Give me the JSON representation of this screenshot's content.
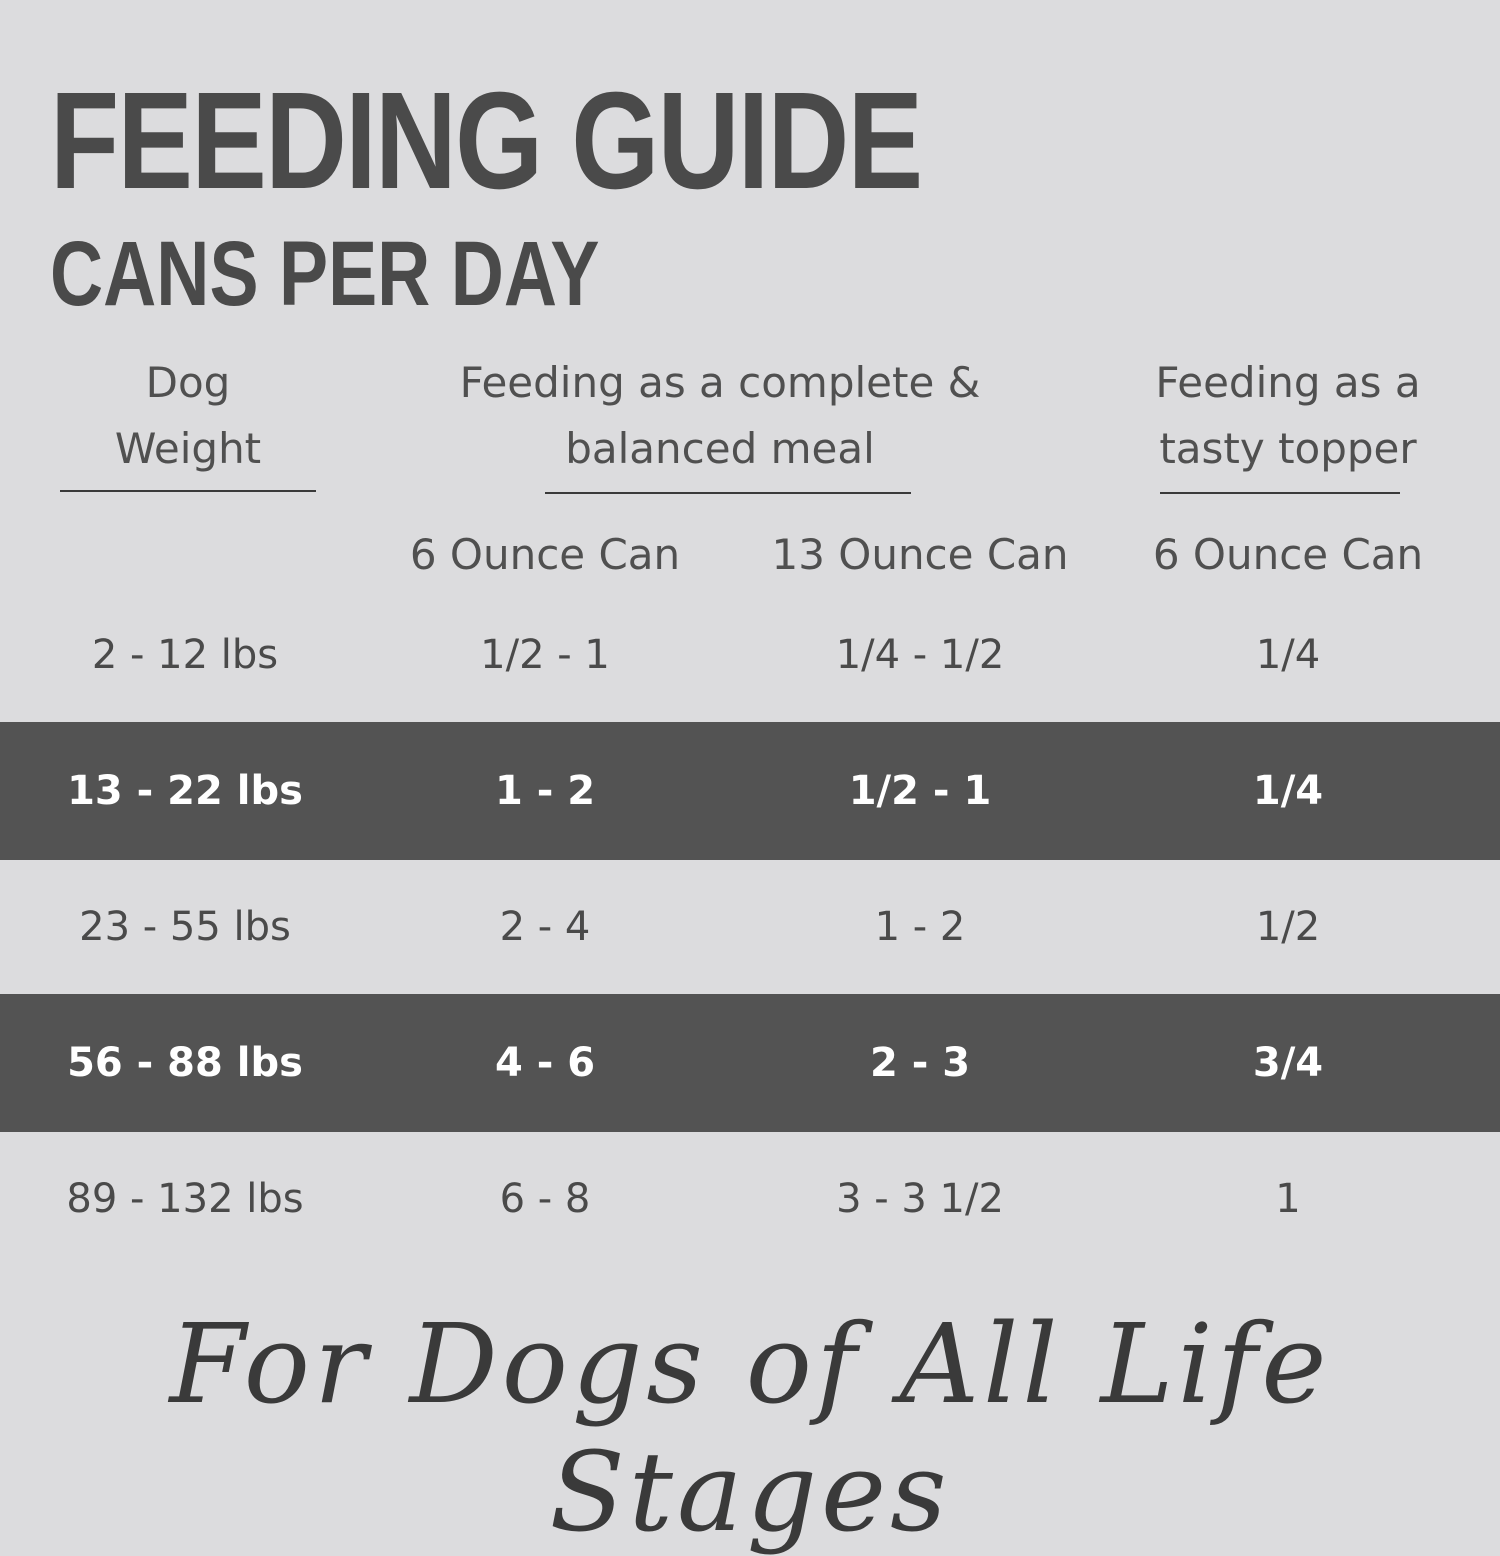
{
  "header": {
    "title": "FEEDING GUIDE",
    "subtitle": "CANS PER DAY"
  },
  "table": {
    "group_headers": [
      {
        "lines": [
          "Dog",
          "Weight"
        ]
      },
      {
        "lines": [
          "Feeding as a complete &",
          "balanced meal"
        ]
      },
      {
        "lines": [
          "Feeding as a",
          "tasty topper"
        ]
      }
    ],
    "sub_headers": [
      "6 Ounce Can",
      "13 Ounce Can",
      "6 Ounce Can"
    ],
    "rows": [
      [
        "2 - 12 lbs",
        "1/2 - 1",
        "1/4 - 1/2",
        "1/4"
      ],
      [
        "13 - 22 lbs",
        "1 - 2",
        "1/2 - 1",
        "1/4"
      ],
      [
        "23 - 55 lbs",
        "2 - 4",
        "1 - 2",
        "1/2"
      ],
      [
        "56 - 88 lbs",
        "4 - 6",
        "2 - 3",
        "3/4"
      ],
      [
        "89 - 132 lbs",
        "6 - 8",
        "3 - 3 1/2",
        "1"
      ]
    ]
  },
  "footer": {
    "tagline": "For Dogs of All Life Stages"
  }
}
